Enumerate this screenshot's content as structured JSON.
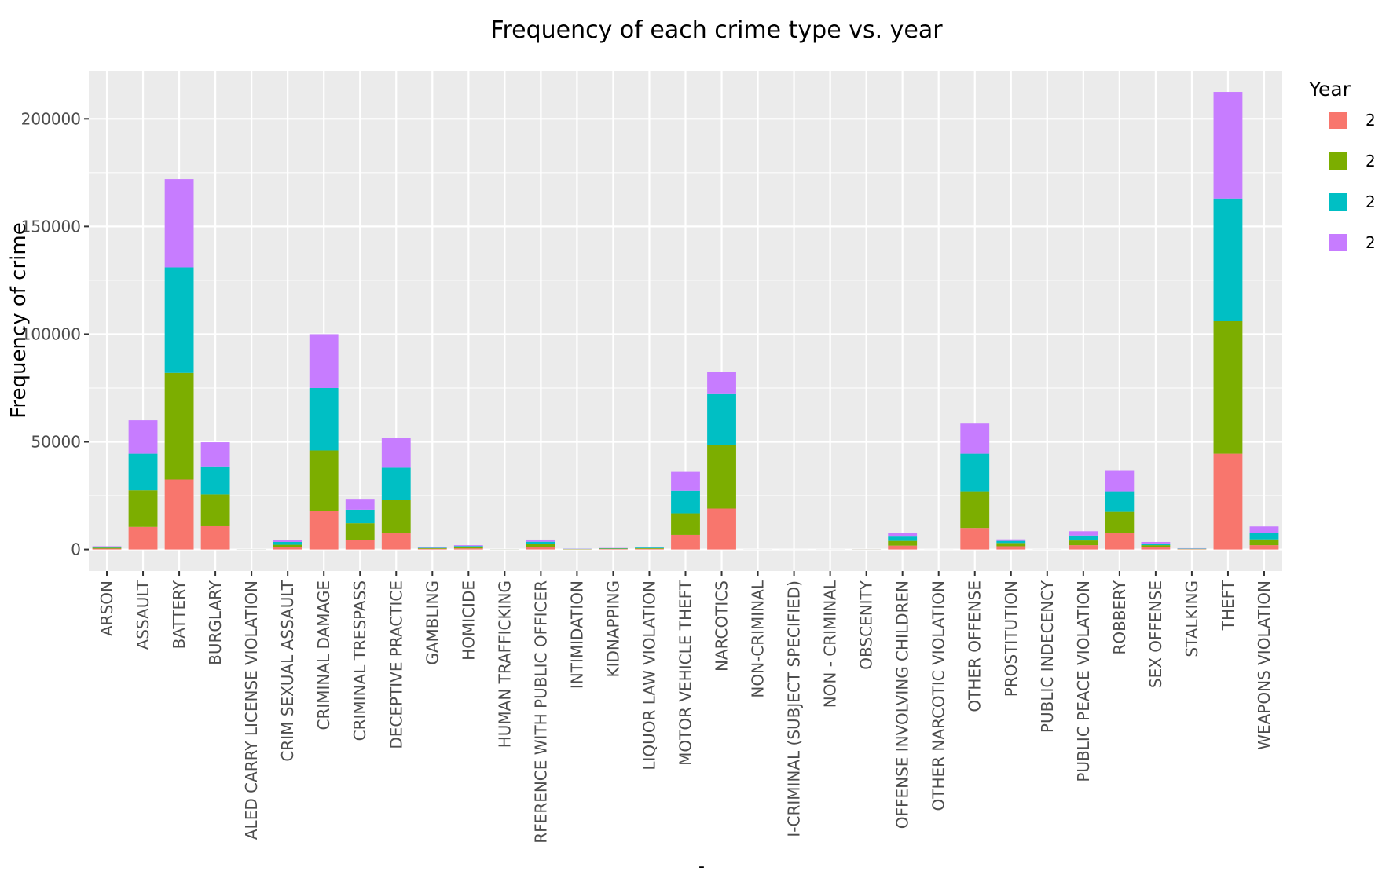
{
  "chart_data": {
    "type": "bar",
    "stacked": true,
    "title": "Frequency of each crime type vs. year",
    "xlabel": "-",
    "ylabel": "Frequency of crime",
    "legend": {
      "title": "Year",
      "placement": "right",
      "labels": [
        "2",
        "2",
        "2",
        "2"
      ]
    },
    "grid": true,
    "ylim": [
      -10000,
      222000
    ],
    "yticks": [
      0,
      50000,
      100000,
      150000,
      200000
    ],
    "ytick_labels": [
      "0",
      "50000",
      "100000",
      "150000",
      "200000"
    ],
    "categories": [
      "ARSON",
      "ASSAULT",
      "BATTERY",
      "BURGLARY",
      "ALED CARRY LICENSE VIOLATION",
      "CRIM SEXUAL ASSAULT",
      "CRIMINAL DAMAGE",
      "CRIMINAL TRESPASS",
      "DECEPTIVE PRACTICE",
      "GAMBLING",
      "HOMICIDE",
      "HUMAN TRAFFICKING",
      "RFERENCE WITH PUBLIC OFFICER",
      "INTIMIDATION",
      "KIDNAPPING",
      "LIQUOR LAW VIOLATION",
      "MOTOR VEHICLE THEFT",
      "NARCOTICS",
      "NON-CRIMINAL",
      "I-CRIMINAL (SUBJECT SPECIFIED)",
      "NON - CRIMINAL",
      "OBSCENITY",
      "OFFENSE INVOLVING CHILDREN",
      "OTHER NARCOTIC VIOLATION",
      "OTHER OFFENSE",
      "PROSTITUTION",
      "PUBLIC INDECENCY",
      "PUBLIC PEACE VIOLATION",
      "ROBBERY",
      "SEX OFFENSE",
      "STALKING",
      "THEFT",
      "WEAPONS VIOLATION"
    ],
    "series": [
      {
        "values": [
          400,
          10500,
          32500,
          10800,
          20,
          1000,
          18000,
          4500,
          7500,
          300,
          500,
          20,
          1200,
          100,
          200,
          300,
          6800,
          19000,
          10,
          5,
          10,
          30,
          1800,
          5,
          10000,
          1500,
          10,
          2000,
          7500,
          1000,
          150,
          44500,
          2000
        ]
      },
      {
        "values": [
          400,
          17000,
          49500,
          14800,
          20,
          1200,
          28000,
          7700,
          15500,
          300,
          600,
          30,
          1200,
          100,
          200,
          300,
          10000,
          29500,
          10,
          5,
          10,
          30,
          2200,
          5,
          17000,
          1500,
          10,
          2200,
          10000,
          1000,
          150,
          61500,
          2700
        ]
      },
      {
        "values": [
          400,
          17000,
          49000,
          13000,
          20,
          1300,
          29000,
          6300,
          15000,
          200,
          500,
          20,
          1200,
          100,
          150,
          300,
          10500,
          24000,
          10,
          5,
          10,
          20,
          2000,
          5,
          17500,
          1000,
          10,
          2300,
          9500,
          800,
          150,
          57000,
          3000
        ]
      },
      {
        "values": [
          300,
          15500,
          41000,
          11200,
          20,
          1000,
          25000,
          5000,
          14000,
          200,
          400,
          20,
          1000,
          100,
          150,
          200,
          8800,
          10000,
          10,
          5,
          10,
          20,
          1800,
          5,
          14000,
          700,
          10,
          2000,
          9500,
          700,
          150,
          49500,
          3000
        ]
      }
    ],
    "colors": [
      "#F8766D",
      "#7CAE00",
      "#00BFC4",
      "#C77CFF"
    ]
  }
}
